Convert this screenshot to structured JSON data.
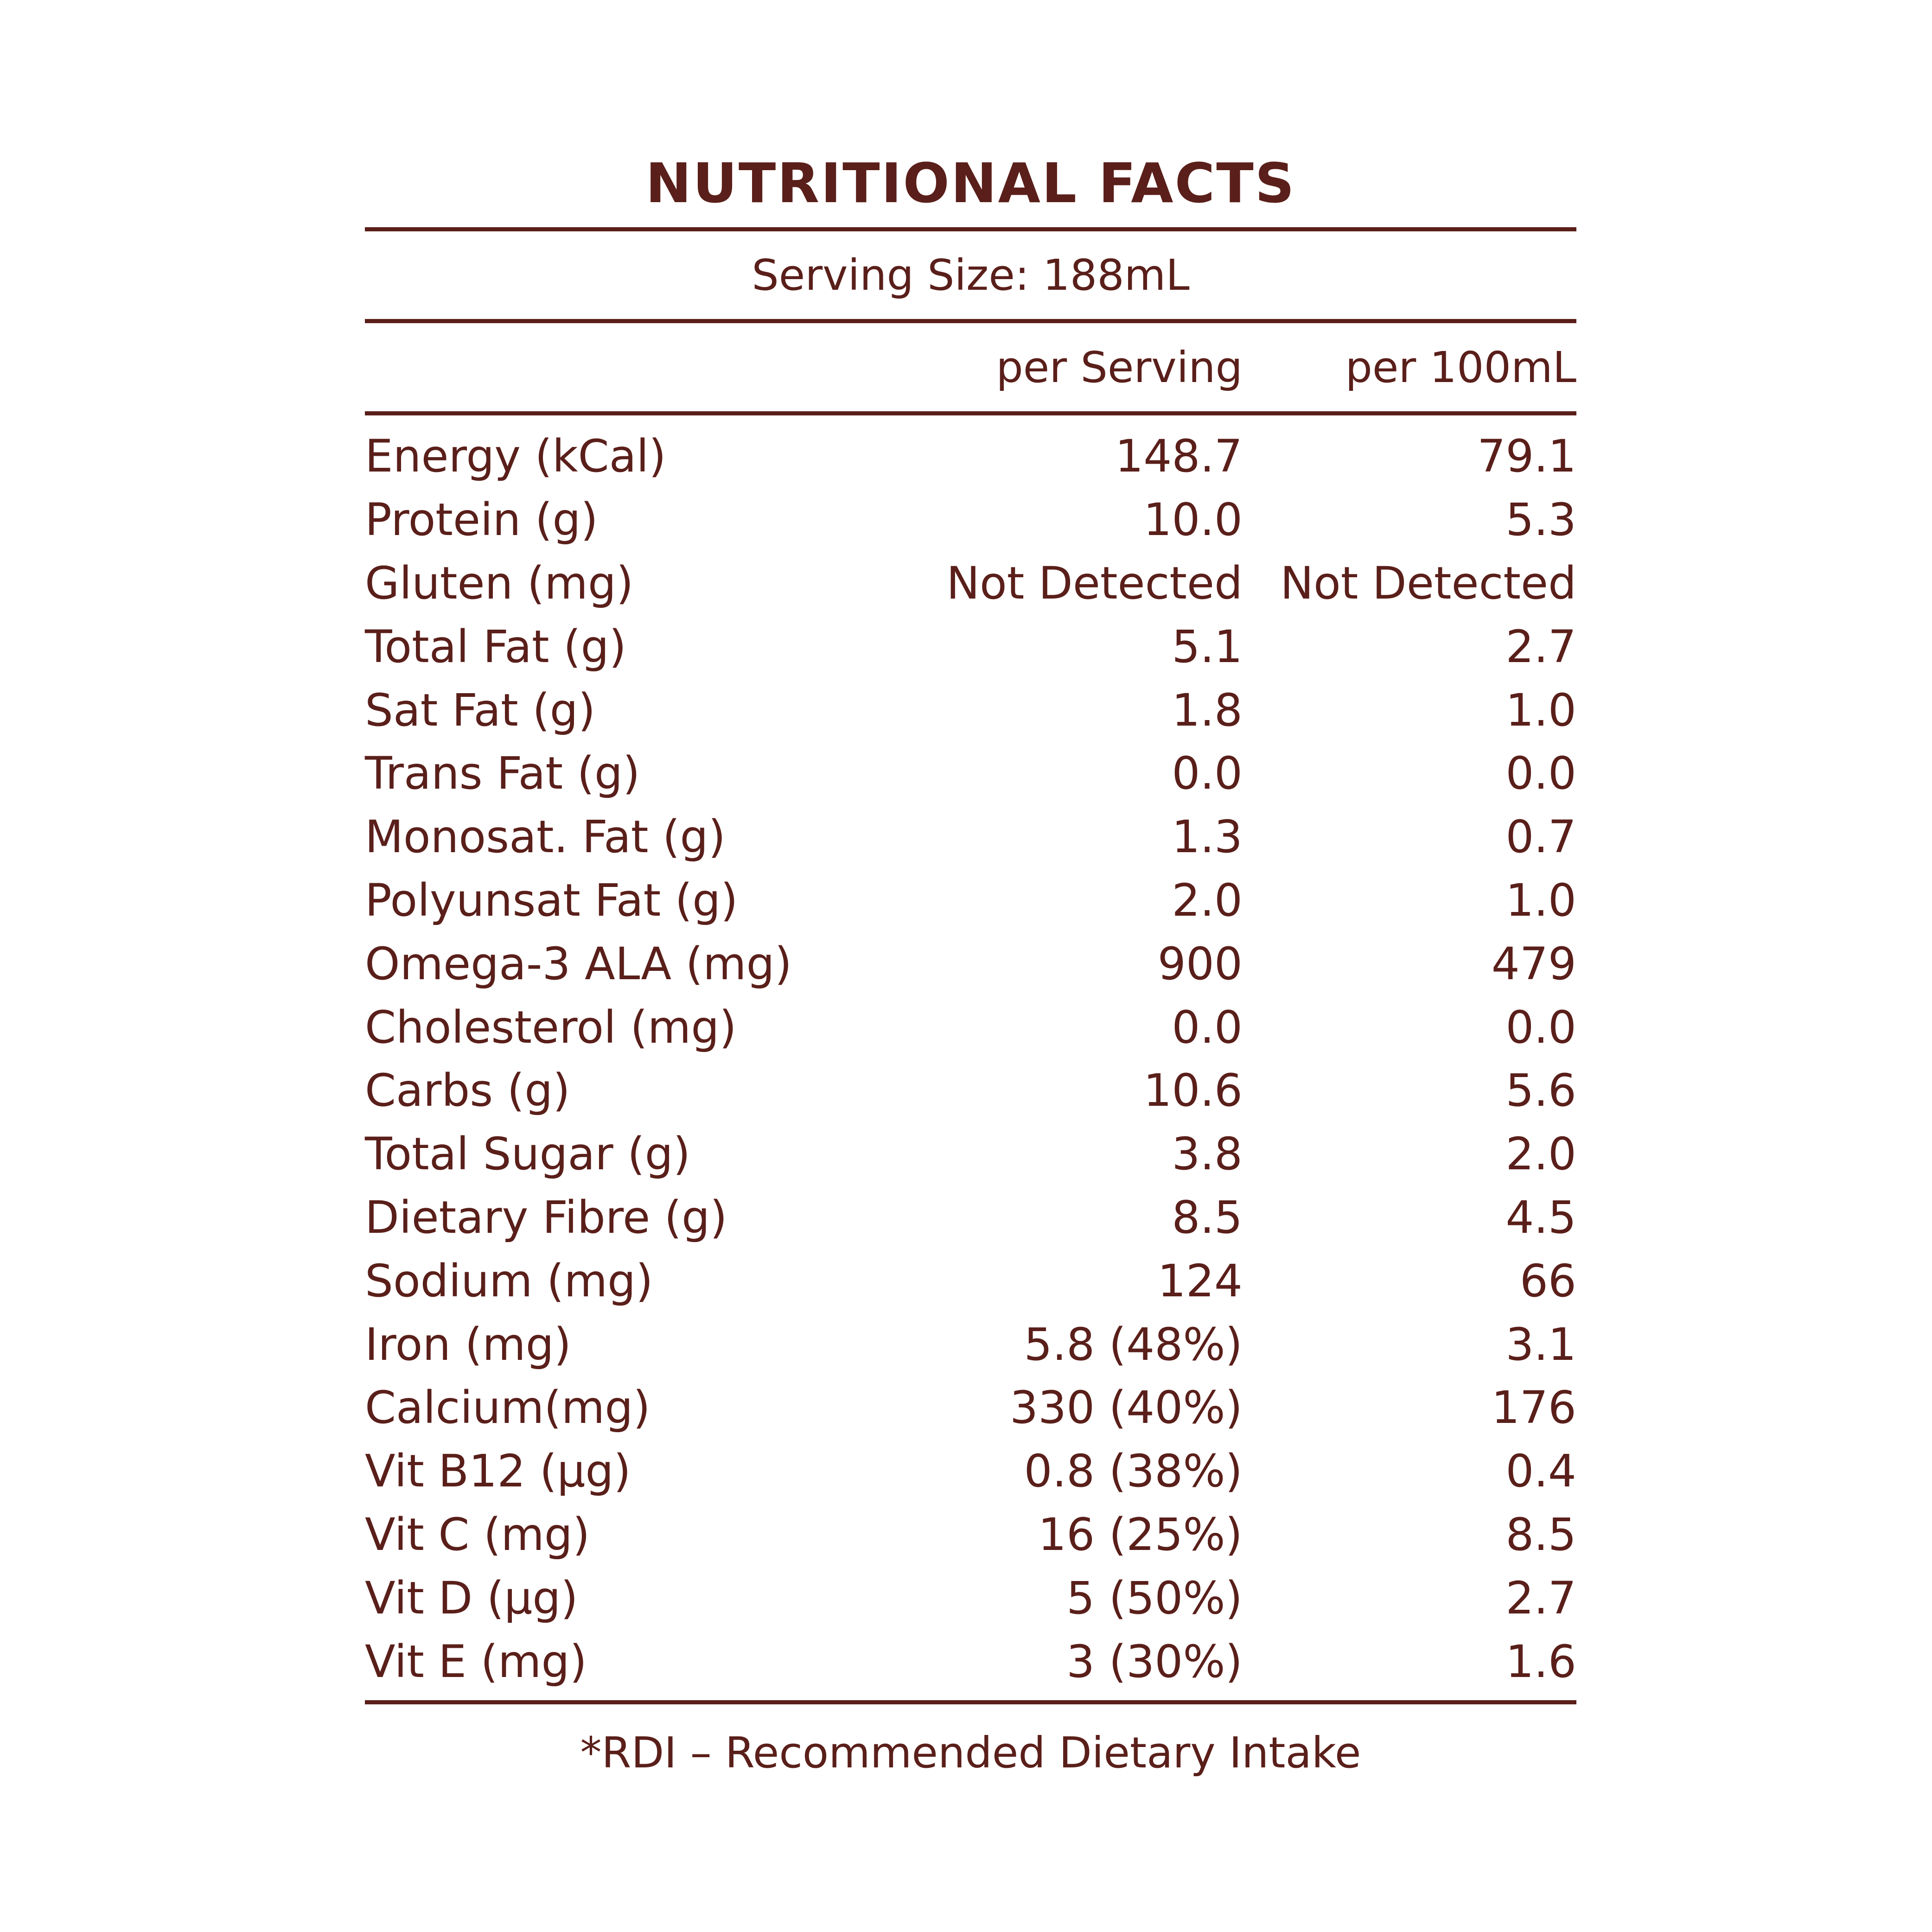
{
  "title": "NUTRITIONAL FACTS",
  "serving_size": "Serving Size: 188mL",
  "columns": {
    "nutrient": "",
    "per_serving": "per Serving",
    "per_100ml": "per 100mL"
  },
  "rows": [
    {
      "nutrient": "Energy (kCal)",
      "per_serving": "148.7",
      "per_100ml": "79.1"
    },
    {
      "nutrient": "Protein (g)",
      "per_serving": "10.0",
      "per_100ml": "5.3"
    },
    {
      "nutrient": "Gluten (mg)",
      "per_serving": "Not Detected",
      "per_100ml": "Not Detected"
    },
    {
      "nutrient": "Total Fat (g)",
      "per_serving": "5.1",
      "per_100ml": "2.7"
    },
    {
      "nutrient": "Sat Fat (g)",
      "per_serving": "1.8",
      "per_100ml": "1.0"
    },
    {
      "nutrient": "Trans Fat (g)",
      "per_serving": "0.0",
      "per_100ml": "0.0"
    },
    {
      "nutrient": "Monosat. Fat (g)",
      "per_serving": "1.3",
      "per_100ml": "0.7"
    },
    {
      "nutrient": "Polyunsat Fat (g)",
      "per_serving": "2.0",
      "per_100ml": "1.0"
    },
    {
      "nutrient": "Omega-3 ALA (mg)",
      "per_serving": "900",
      "per_100ml": "479"
    },
    {
      "nutrient": "Cholesterol (mg)",
      "per_serving": "0.0",
      "per_100ml": "0.0"
    },
    {
      "nutrient": "Carbs (g)",
      "per_serving": "10.6",
      "per_100ml": "5.6"
    },
    {
      "nutrient": "Total Sugar (g)",
      "per_serving": "3.8",
      "per_100ml": "2.0"
    },
    {
      "nutrient": "Dietary Fibre (g)",
      "per_serving": "8.5",
      "per_100ml": "4.5"
    },
    {
      "nutrient": "Sodium (mg)",
      "per_serving": "124",
      "per_100ml": "66"
    },
    {
      "nutrient": "Iron (mg)",
      "per_serving": "5.8 (48%)",
      "per_100ml": "3.1"
    },
    {
      "nutrient": "Calcium(mg)",
      "per_serving": "330 (40%)",
      "per_100ml": "176"
    },
    {
      "nutrient": "Vit B12 (µg)",
      "per_serving": "0.8 (38%)",
      "per_100ml": "0.4"
    },
    {
      "nutrient": "Vit C (mg)",
      "per_serving": "16 (25%)",
      "per_100ml": "8.5"
    },
    {
      "nutrient": "Vit D (µg)",
      "per_serving": "5 (50%)",
      "per_100ml": "2.7"
    },
    {
      "nutrient": "Vit E (mg)",
      "per_serving": "3 (30%)",
      "per_100ml": "1.6"
    }
  ],
  "footnote": "*RDI – Recommended Dietary Intake",
  "colors": {
    "text": "#5a1f1a",
    "background": "#ffffff"
  }
}
